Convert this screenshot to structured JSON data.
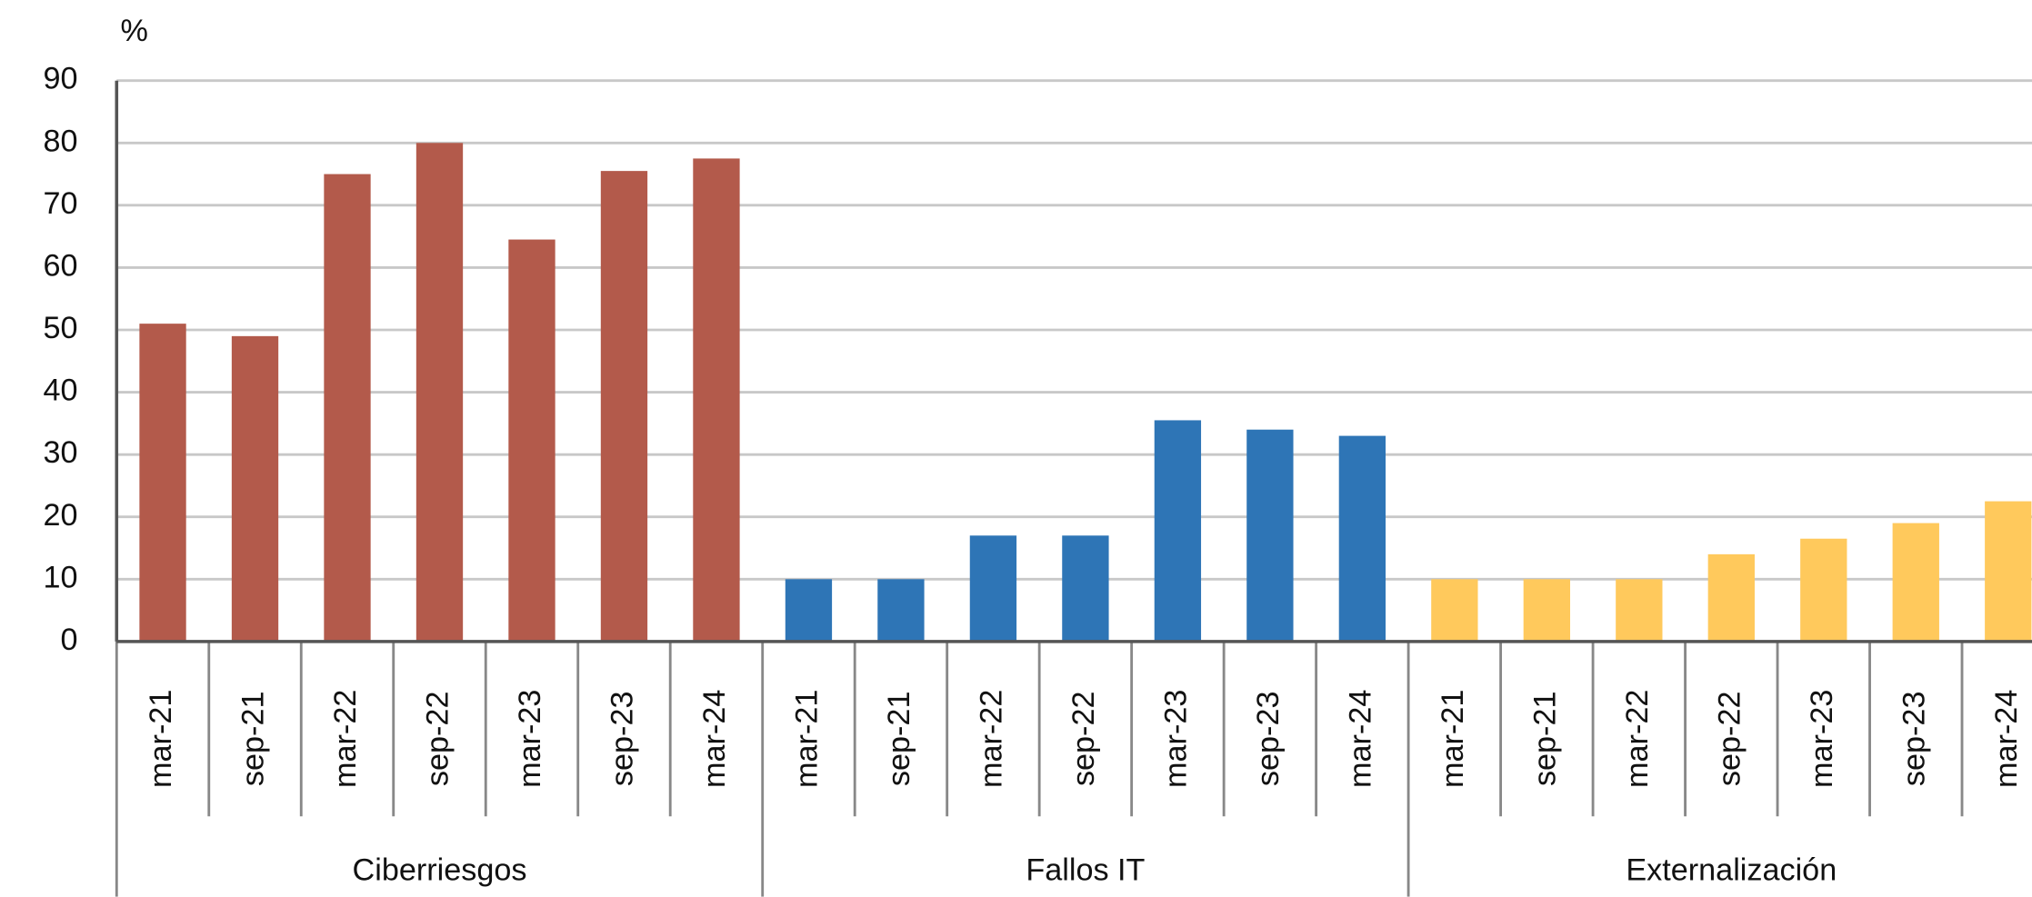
{
  "chart_data": {
    "type": "bar",
    "y_unit": "%",
    "ylim": [
      0,
      90
    ],
    "yticks": [
      0,
      10,
      20,
      30,
      40,
      50,
      60,
      70,
      80,
      90
    ],
    "grid": true,
    "groups": [
      {
        "name": "Ciberriesgos",
        "color": "#b35a4b",
        "categories": [
          "mar-21",
          "sep-21",
          "mar-22",
          "sep-22",
          "mar-23",
          "sep-23",
          "mar-24"
        ],
        "values": [
          51,
          49,
          75,
          80,
          64.5,
          75.5,
          77.5
        ]
      },
      {
        "name": "Fallos IT",
        "color": "#2e75b6",
        "categories": [
          "mar-21",
          "sep-21",
          "mar-22",
          "sep-22",
          "mar-23",
          "sep-23",
          "mar-24"
        ],
        "values": [
          10,
          10,
          17,
          17,
          35.5,
          34,
          33
        ]
      },
      {
        "name": "Externalización",
        "color": "#ffc95c",
        "categories": [
          "mar-21",
          "sep-21",
          "mar-22",
          "sep-22",
          "mar-23",
          "sep-23",
          "mar-24"
        ],
        "values": [
          10,
          10,
          10,
          14,
          16.5,
          19,
          22.5
        ]
      }
    ]
  }
}
